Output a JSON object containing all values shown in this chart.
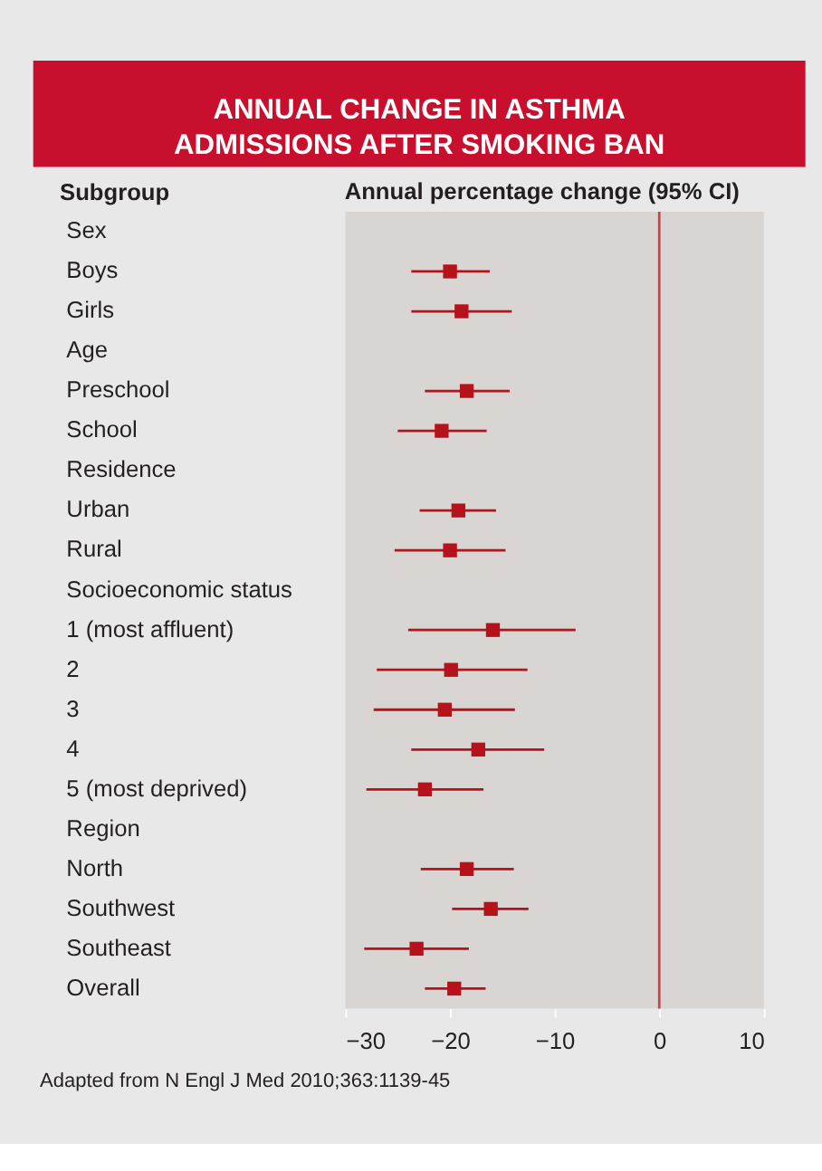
{
  "chart_data": {
    "type": "scatter",
    "orientation": "horizontal",
    "marker": "square",
    "title": "ANNUAL CHANGE IN ASTHMA ADMISSIONS AFTER SMOKING BAN",
    "ylabel": "Subgroup",
    "xlabel": "Annual percentage change (95% CI)",
    "categories": [
      "Sex",
      "Boys",
      "Girls",
      "Age",
      "Preschool",
      "School",
      "Residence",
      "Urban",
      "Rural",
      "Socioeconomic status",
      "1 (most affluent)",
      "2",
      "3",
      "4",
      "5 (most deprived)",
      "Region",
      "North",
      "Southwest",
      "Southeast",
      "Overall"
    ],
    "series": [
      {
        "color": "#b5121b",
        "values": [
          null,
          -20.0,
          -18.9,
          null,
          -18.4,
          -20.8,
          null,
          -19.2,
          -20.0,
          null,
          -15.9,
          -19.9,
          -20.5,
          -17.3,
          -22.4,
          null,
          -18.4,
          -16.1,
          -23.2,
          -19.6
        ],
        "errors": [
          null,
          [
            -23.7,
            -16.2
          ],
          [
            -23.7,
            -14.1
          ],
          null,
          [
            -22.4,
            -14.3
          ],
          [
            -25.0,
            -16.5
          ],
          null,
          [
            -22.9,
            -15.6
          ],
          [
            -25.3,
            -14.7
          ],
          null,
          [
            -24.0,
            -8.0
          ],
          [
            -27.0,
            -12.6
          ],
          [
            -27.3,
            -13.8
          ],
          [
            -23.7,
            -11.0
          ],
          [
            -28.0,
            -16.8
          ],
          null,
          [
            -22.8,
            -13.9
          ],
          [
            -19.8,
            -12.5
          ],
          [
            -28.2,
            -18.2
          ],
          [
            -22.4,
            -16.6
          ]
        ]
      }
    ],
    "xlim": [
      -30,
      10
    ],
    "xticks": [
      -30,
      -20,
      -10,
      0,
      10
    ],
    "ref_lines": [
      {
        "axis": "x",
        "value": 0,
        "color": "#d0404a"
      }
    ],
    "annotations": [
      "Adapted from N Engl J Med 2010;363:1139-45"
    ]
  }
}
